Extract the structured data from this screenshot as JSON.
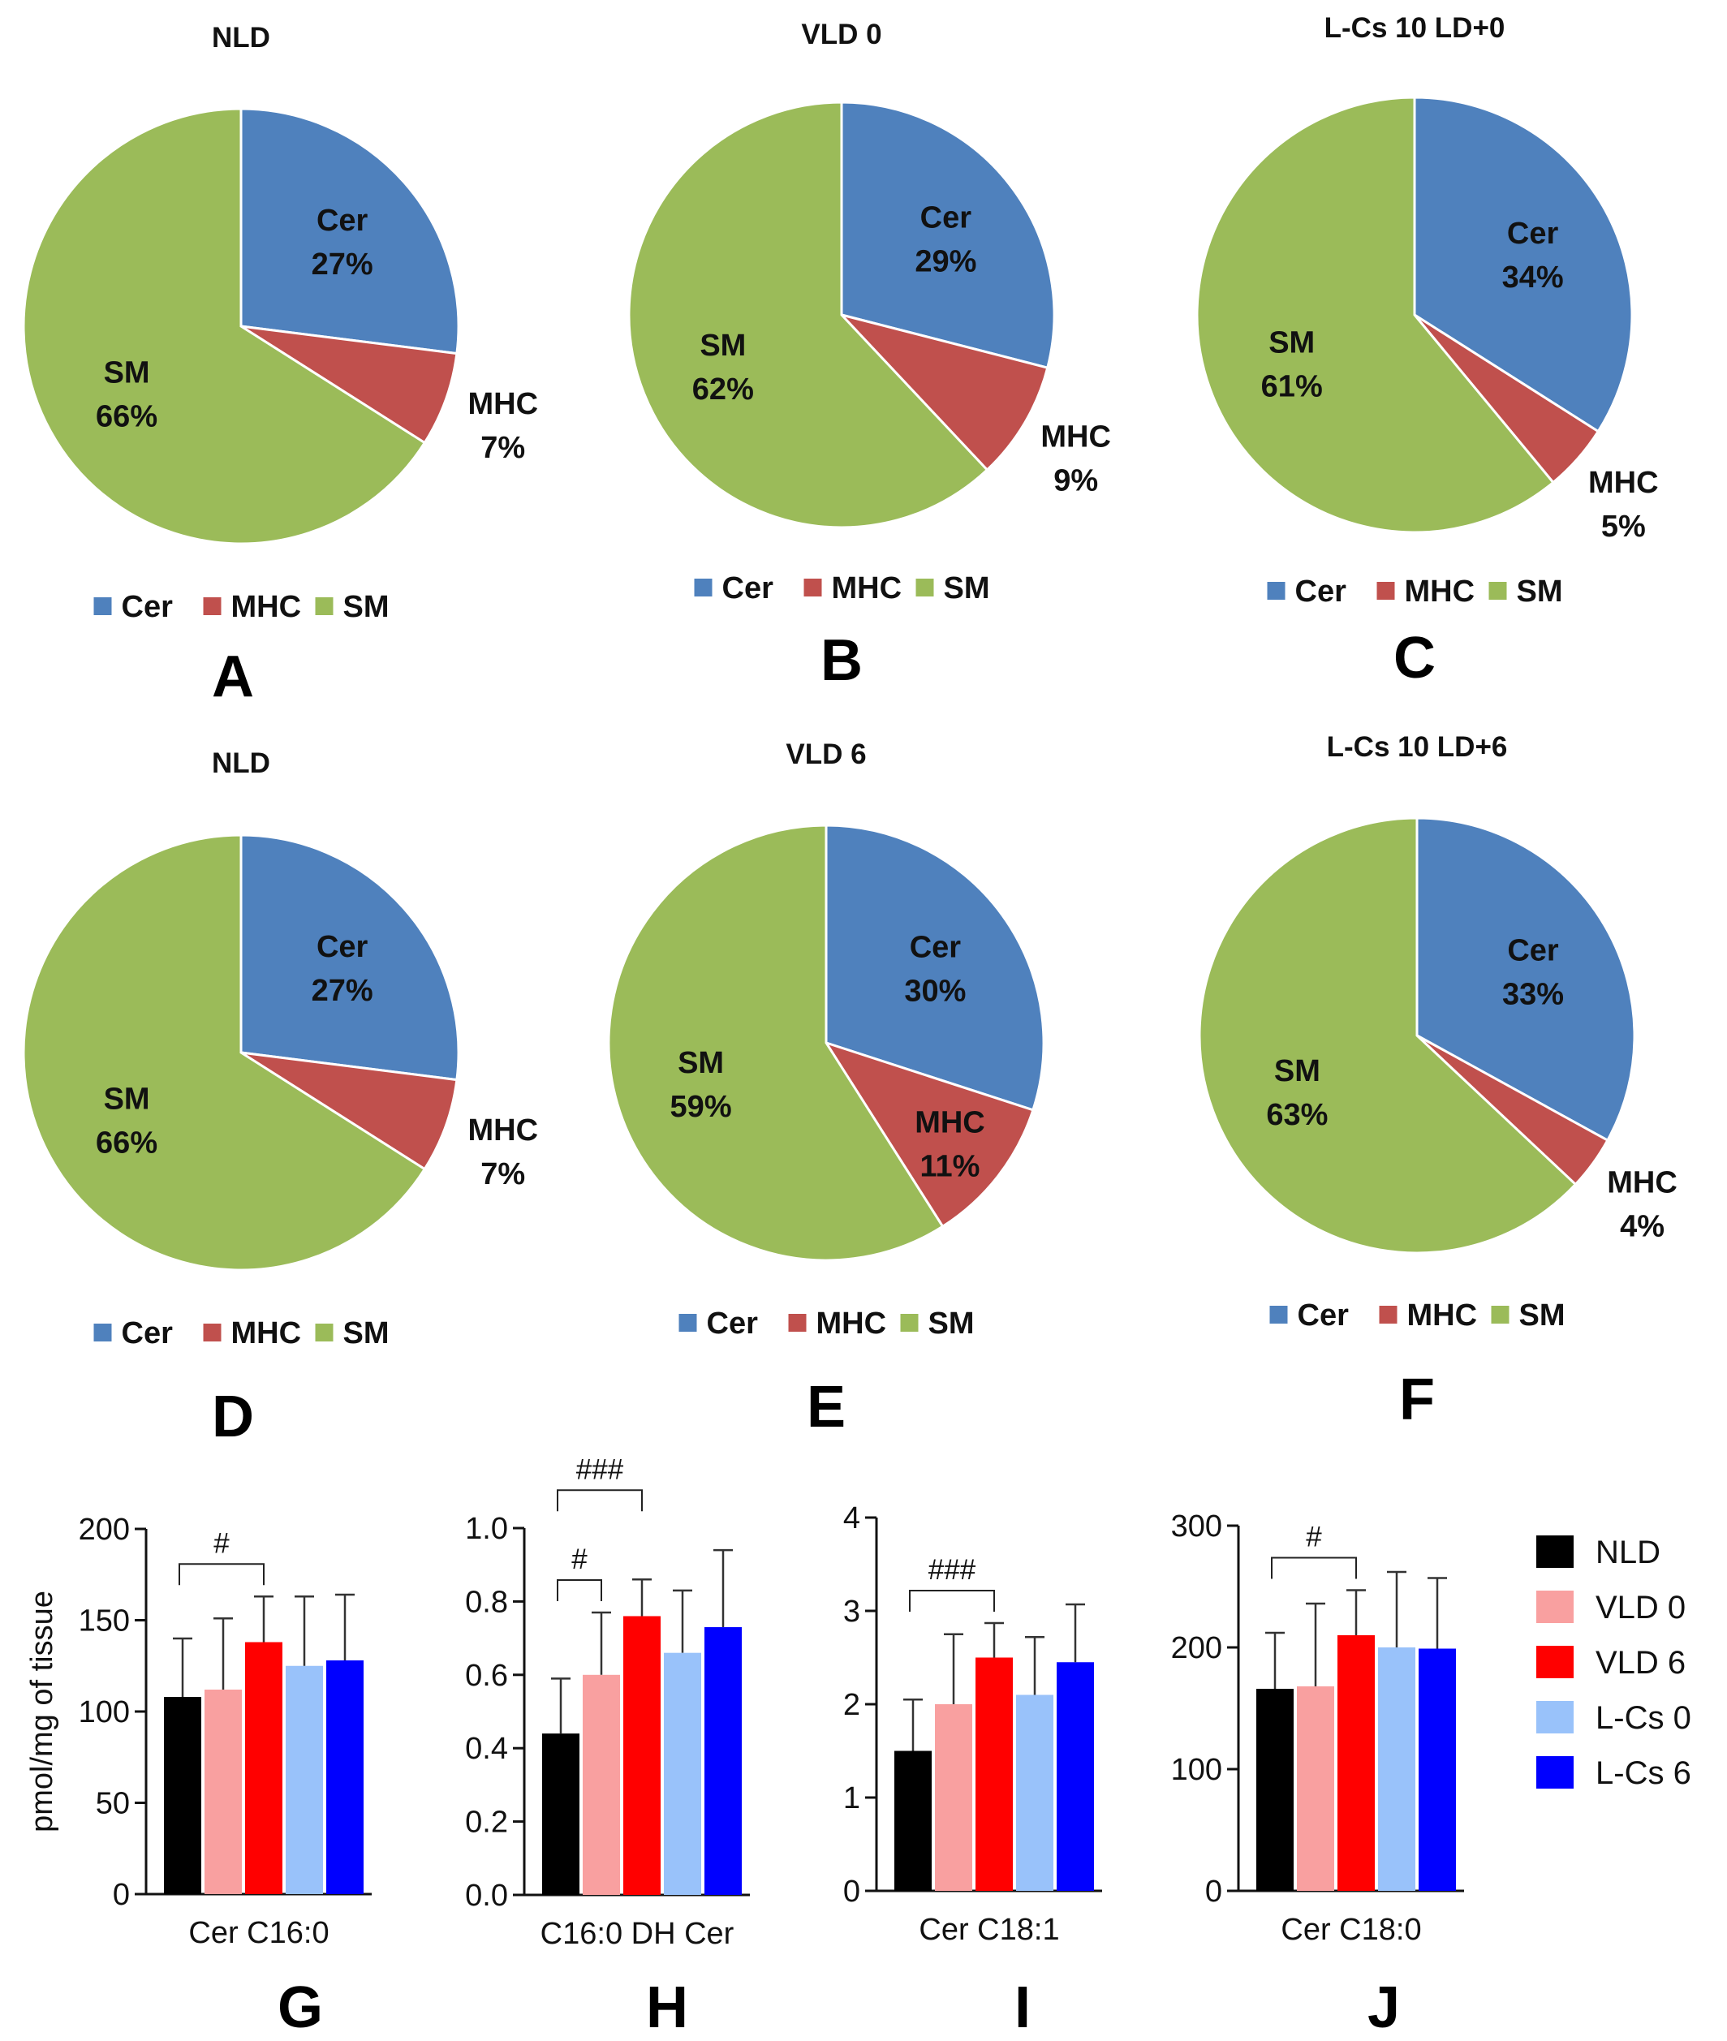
{
  "colors": {
    "cer": "#4F81BD",
    "mhc": "#C0504D",
    "sm": "#9BBB59",
    "NLD": "#000000",
    "VLD 0": "#F9A0A0",
    "VLD 6": "#FF0000",
    "L-Cs 0": "#99C2FA",
    "L-Cs 6": "#0000FF"
  },
  "chart_data": [
    {
      "type": "pie",
      "panel": "A",
      "title": "NLD",
      "slices": [
        {
          "key": "cer",
          "name": "Cer",
          "value": 27,
          "pct": "27%"
        },
        {
          "key": "mhc",
          "name": "MHC",
          "value": 7,
          "pct": "7%"
        },
        {
          "key": "sm",
          "name": "SM",
          "value": 66,
          "pct": "66%"
        }
      ],
      "legend": [
        "Cer",
        "MHC",
        "SM"
      ]
    },
    {
      "type": "pie",
      "panel": "B",
      "title": "VLD 0",
      "slices": [
        {
          "key": "cer",
          "name": "Cer",
          "value": 29,
          "pct": "29%"
        },
        {
          "key": "mhc",
          "name": "MHC",
          "value": 9,
          "pct": "9%"
        },
        {
          "key": "sm",
          "name": "SM",
          "value": 62,
          "pct": "62%"
        }
      ],
      "legend": [
        "Cer",
        "MHC",
        "SM"
      ]
    },
    {
      "type": "pie",
      "panel": "C",
      "title": "L-Cs 10 LD+0",
      "slices": [
        {
          "key": "cer",
          "name": "Cer",
          "value": 34,
          "pct": "34%"
        },
        {
          "key": "mhc",
          "name": "MHC",
          "value": 5,
          "pct": "5%"
        },
        {
          "key": "sm",
          "name": "SM",
          "value": 61,
          "pct": "61%"
        }
      ],
      "legend": [
        "Cer",
        "MHC",
        "SM"
      ]
    },
    {
      "type": "pie",
      "panel": "D",
      "title": "NLD",
      "slices": [
        {
          "key": "cer",
          "name": "Cer",
          "value": 27,
          "pct": "27%"
        },
        {
          "key": "mhc",
          "name": "MHC",
          "value": 7,
          "pct": "7%"
        },
        {
          "key": "sm",
          "name": "SM",
          "value": 66,
          "pct": "66%"
        }
      ],
      "legend": [
        "Cer",
        "MHC",
        "SM"
      ]
    },
    {
      "type": "pie",
      "panel": "E",
      "title": "VLD 6",
      "slices": [
        {
          "key": "cer",
          "name": "Cer",
          "value": 30,
          "pct": "30%"
        },
        {
          "key": "mhc",
          "name": "MHC",
          "value": 11,
          "pct": "11%"
        },
        {
          "key": "sm",
          "name": "SM",
          "value": 59,
          "pct": "59%"
        }
      ],
      "legend": [
        "Cer",
        "MHC",
        "SM"
      ]
    },
    {
      "type": "pie",
      "panel": "F",
      "title": "L-Cs 10 LD+6",
      "slices": [
        {
          "key": "cer",
          "name": "Cer",
          "value": 33,
          "pct": "33%"
        },
        {
          "key": "mhc",
          "name": "MHC",
          "value": 4,
          "pct": "4%"
        },
        {
          "key": "sm",
          "name": "SM",
          "value": 63,
          "pct": "63%"
        }
      ],
      "legend": [
        "Cer",
        "MHC",
        "SM"
      ]
    },
    {
      "type": "bar",
      "panel": "G",
      "xlabel": "Cer C16:0",
      "ylabel": "pmol/mg of tissue",
      "ylim": [
        0,
        200
      ],
      "ticks": [
        "0",
        "50",
        "100",
        "150",
        "200"
      ],
      "groups": [
        "NLD",
        "VLD 0",
        "VLD 6",
        "L-Cs 0",
        "L-Cs 6"
      ],
      "values": [
        108,
        112,
        138,
        125,
        128
      ],
      "errors": [
        32,
        39,
        25,
        38,
        36
      ],
      "significance": [
        {
          "label": "#",
          "from": 0,
          "to": 2
        }
      ]
    },
    {
      "type": "bar",
      "panel": "H",
      "xlabel": "C16:0 DH Cer",
      "ylim": [
        0,
        1.0
      ],
      "ticks": [
        "0.0",
        "0.2",
        "0.4",
        "0.6",
        "0.8",
        "1.0"
      ],
      "groups": [
        "NLD",
        "VLD 0",
        "VLD 6",
        "L-Cs 0",
        "L-Cs 6"
      ],
      "values": [
        0.44,
        0.6,
        0.76,
        0.66,
        0.73
      ],
      "errors": [
        0.15,
        0.17,
        0.1,
        0.17,
        0.21
      ],
      "significance": [
        {
          "label": "#",
          "from": 0,
          "to": 1
        },
        {
          "label": "###",
          "from": 0,
          "to": 2
        }
      ]
    },
    {
      "type": "bar",
      "panel": "I",
      "xlabel": "Cer C18:1",
      "ylim": [
        0,
        4
      ],
      "ticks": [
        "0",
        "1",
        "2",
        "3",
        "4"
      ],
      "groups": [
        "NLD",
        "VLD 0",
        "VLD 6",
        "L-Cs 0",
        "L-Cs 6"
      ],
      "values": [
        1.5,
        2.0,
        2.5,
        2.1,
        2.45
      ],
      "errors": [
        0.55,
        0.75,
        0.37,
        0.62,
        0.62
      ],
      "significance": [
        {
          "label": "###",
          "from": 0,
          "to": 2
        }
      ]
    },
    {
      "type": "bar",
      "panel": "J",
      "xlabel": "Cer C18:0",
      "ylim": [
        0,
        300
      ],
      "ticks": [
        "0",
        "100",
        "200",
        "300"
      ],
      "groups": [
        "NLD",
        "VLD 0",
        "VLD 6",
        "L-Cs 0",
        "L-Cs 6"
      ],
      "values": [
        166,
        168,
        210,
        200,
        199
      ],
      "errors": [
        46,
        68,
        37,
        62,
        58
      ],
      "significance": [
        {
          "label": "#",
          "from": 0,
          "to": 2
        }
      ]
    }
  ],
  "bar_legend": [
    "NLD",
    "VLD 0",
    "VLD 6",
    "L-Cs 0",
    "L-Cs 6"
  ]
}
